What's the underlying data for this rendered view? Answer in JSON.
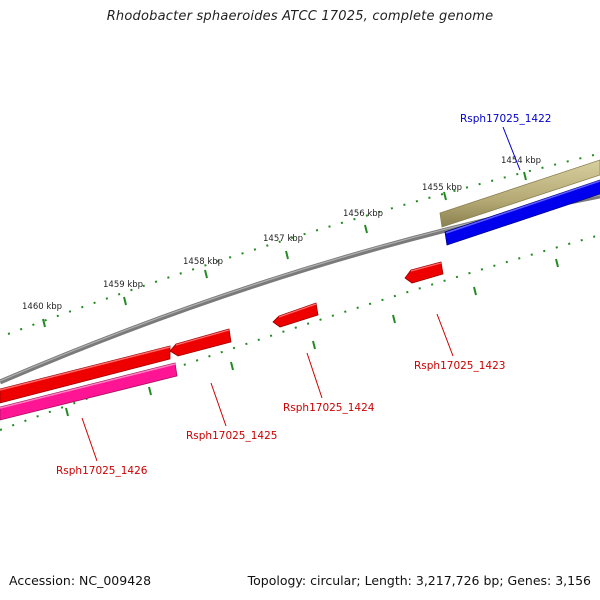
{
  "title": "Rhodobacter sphaeroides ATCC 17025, complete genome",
  "footer": {
    "accession": "Accession: NC_009428",
    "summary": "Topology: circular; Length: 3,217,726 bp; Genes: 3,156"
  },
  "colors": {
    "backbone": "#808080",
    "tick": "#228b22",
    "tick_label": "#222222",
    "red_gene": "#ee0000",
    "pink_gene": "#ff1493",
    "blue_gene": "#0000ee",
    "khaki_gene": "#b5aa74",
    "red_label": "#cc0000",
    "blue_label": "#0000cc"
  },
  "ruler": {
    "labels": [
      "1454 kbp",
      "1455 kbp",
      "1456 kbp",
      "1457 kbp",
      "1458 kbp",
      "1459 kbp",
      "1460 kbp"
    ]
  },
  "genes": [
    {
      "label": "Rsph17025_1422",
      "color": "blue"
    },
    {
      "label": "Rsph17025_1423",
      "color": "red"
    },
    {
      "label": "Rsph17025_1424",
      "color": "red"
    },
    {
      "label": "Rsph17025_1425",
      "color": "red"
    },
    {
      "label": "Rsph17025_1426",
      "color": "red"
    }
  ]
}
